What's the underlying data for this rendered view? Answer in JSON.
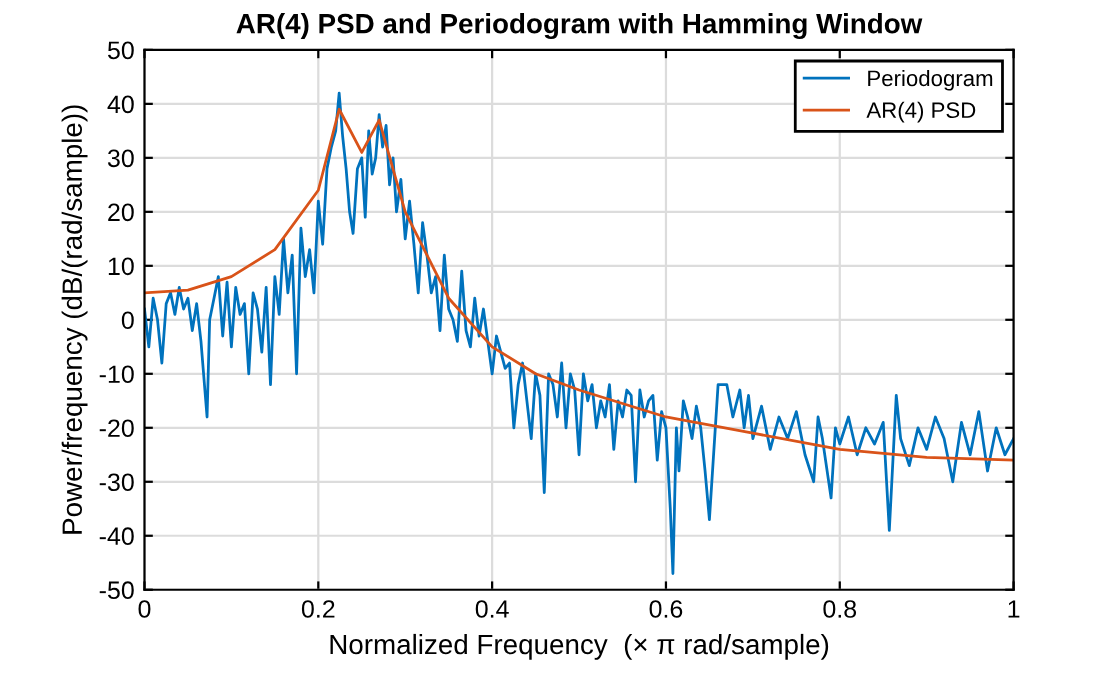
{
  "chart_data": {
    "type": "line",
    "title": "AR(4) PSD and Periodogram with Hamming Window",
    "xlabel": "Normalized Frequency  (× π rad/sample)",
    "ylabel": "Power/frequency (dB/(rad/sample))",
    "xlim": [
      0,
      1
    ],
    "ylim": [
      -50,
      50
    ],
    "xticks": [
      0,
      0.2,
      0.4,
      0.6,
      0.8,
      1
    ],
    "yticks": [
      -50,
      -40,
      -30,
      -20,
      -10,
      0,
      10,
      20,
      30,
      40,
      50
    ],
    "grid": true,
    "legend": "top right",
    "marker": "none",
    "line_style": "solid",
    "series": [
      {
        "name": "Periodogram",
        "color": "#0072bd",
        "x": [
          0,
          0.005,
          0.01,
          0.015,
          0.02,
          0.025,
          0.03,
          0.035,
          0.04,
          0.045,
          0.05,
          0.055,
          0.06,
          0.065,
          0.072,
          0.075,
          0.08,
          0.085,
          0.09,
          0.095,
          0.1,
          0.105,
          0.11,
          0.115,
          0.12,
          0.125,
          0.13,
          0.135,
          0.14,
          0.145,
          0.15,
          0.155,
          0.16,
          0.165,
          0.17,
          0.175,
          0.18,
          0.185,
          0.19,
          0.195,
          0.2,
          0.205,
          0.21,
          0.215,
          0.22,
          0.224,
          0.228,
          0.232,
          0.236,
          0.24,
          0.245,
          0.25,
          0.254,
          0.258,
          0.262,
          0.266,
          0.27,
          0.274,
          0.278,
          0.282,
          0.286,
          0.29,
          0.295,
          0.3,
          0.305,
          0.31,
          0.315,
          0.32,
          0.325,
          0.33,
          0.335,
          0.34,
          0.345,
          0.35,
          0.355,
          0.36,
          0.365,
          0.37,
          0.375,
          0.38,
          0.385,
          0.39,
          0.395,
          0.4,
          0.405,
          0.41,
          0.415,
          0.42,
          0.425,
          0.43,
          0.435,
          0.44,
          0.445,
          0.45,
          0.455,
          0.46,
          0.465,
          0.47,
          0.475,
          0.48,
          0.485,
          0.49,
          0.495,
          0.5,
          0.505,
          0.51,
          0.515,
          0.52,
          0.525,
          0.53,
          0.535,
          0.54,
          0.545,
          0.55,
          0.555,
          0.56,
          0.565,
          0.57,
          0.575,
          0.58,
          0.585,
          0.59,
          0.595,
          0.6,
          0.605,
          0.608,
          0.612,
          0.615,
          0.62,
          0.625,
          0.63,
          0.635,
          0.64,
          0.645,
          0.65,
          0.66,
          0.67,
          0.677,
          0.685,
          0.69,
          0.695,
          0.7,
          0.71,
          0.72,
          0.73,
          0.74,
          0.75,
          0.76,
          0.77,
          0.775,
          0.78,
          0.79,
          0.795,
          0.8,
          0.81,
          0.82,
          0.83,
          0.84,
          0.85,
          0.857,
          0.865,
          0.87,
          0.88,
          0.89,
          0.9,
          0.91,
          0.92,
          0.93,
          0.94,
          0.95,
          0.96,
          0.97,
          0.98,
          0.99,
          1
        ],
        "values": [
          2,
          -5,
          4,
          0,
          -8,
          3,
          5,
          1,
          6,
          2,
          4,
          -2,
          3,
          -4,
          -18,
          0,
          4,
          8,
          -3,
          7,
          -5,
          6,
          1,
          3,
          -10,
          5,
          2,
          -6,
          6,
          -12,
          8,
          1,
          15,
          5,
          12,
          -10,
          17,
          8,
          13,
          5,
          22,
          14,
          28,
          32,
          35,
          42,
          34,
          28,
          20,
          16,
          28,
          30,
          19,
          35,
          27,
          30,
          38,
          32,
          36,
          25,
          30,
          20,
          26,
          15,
          22,
          14,
          5,
          18,
          12,
          5,
          8,
          -2,
          12,
          2,
          0,
          -4,
          9,
          -2,
          -5,
          4,
          -3,
          2,
          -4,
          -10,
          -3,
          -6,
          -9,
          -8,
          -20,
          -12,
          -8,
          -15,
          -22,
          -10,
          -14,
          -32,
          -10,
          -12,
          -18,
          -8,
          -20,
          -10,
          -13,
          -25,
          -10,
          -15,
          -12,
          -20,
          -15,
          -18,
          -12,
          -24,
          -15,
          -18,
          -13,
          -14,
          -30,
          -13,
          -18,
          -15,
          -14,
          -26,
          -17,
          -20,
          -35,
          -47,
          -20,
          -28,
          -15,
          -18,
          -22,
          -16,
          -20,
          -28,
          -37,
          -12,
          -12,
          -18,
          -13,
          -20,
          -14,
          -22,
          -16,
          -24,
          -18,
          -22,
          -17,
          -25,
          -30,
          -18,
          -22,
          -33,
          -20,
          -23,
          -18,
          -25,
          -20,
          -23,
          -19,
          -39,
          -14,
          -22,
          -27,
          -20,
          -24,
          -18,
          -22,
          -30,
          -19,
          -25,
          -17,
          -28,
          -20,
          -25,
          -22
        ]
      },
      {
        "name": "AR(4) PSD",
        "color": "#d95319",
        "x": [
          0,
          0.05,
          0.1,
          0.15,
          0.2,
          0.224,
          0.25,
          0.27,
          0.3,
          0.35,
          0.4,
          0.45,
          0.5,
          0.6,
          0.7,
          0.8,
          0.9,
          1
        ],
        "values": [
          5,
          5.5,
          8,
          13,
          24,
          39,
          31,
          37,
          20,
          4,
          -5,
          -10,
          -13,
          -18,
          -21,
          -24,
          -25.5,
          -26
        ]
      }
    ]
  }
}
